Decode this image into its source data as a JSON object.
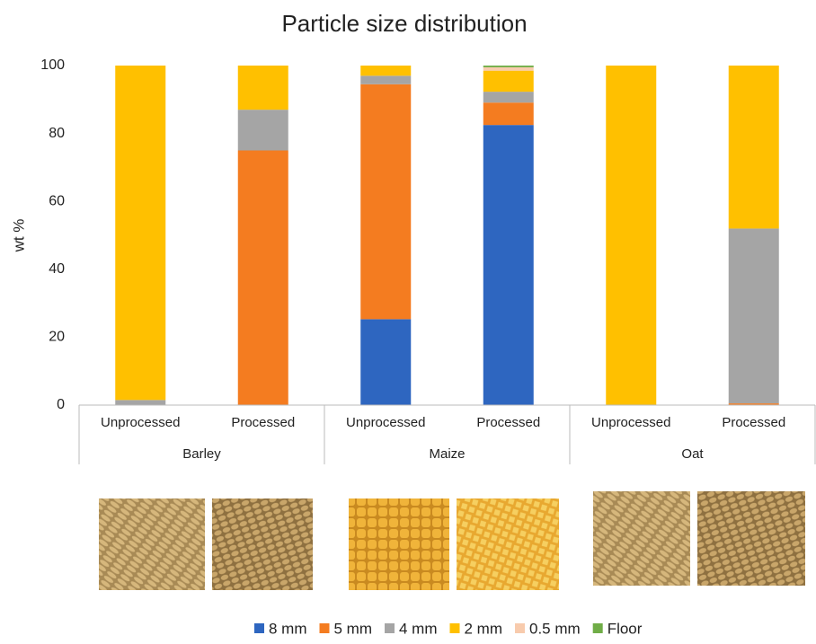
{
  "chart_data": {
    "type": "stacked-bar",
    "title": "Particle size distribution",
    "y_label": "wt %",
    "categories": [
      "Unprocessed",
      "Processed",
      "Unprocessed",
      "Processed",
      "Unprocessed",
      "Processed"
    ],
    "groups": [
      "Barley",
      "Maize",
      "Oat"
    ],
    "series": [
      {
        "name": "8 mm",
        "color": "#2e66c0",
        "values": [
          0,
          0,
          25.3,
          82.5,
          0,
          0
        ]
      },
      {
        "name": "5 mm",
        "color": "#f47c20",
        "values": [
          0,
          75,
          69.2,
          6.6,
          0,
          0.5
        ]
      },
      {
        "name": "4 mm",
        "color": "#a5a5a5",
        "values": [
          1.5,
          12,
          2.5,
          3.2,
          0,
          51.5
        ]
      },
      {
        "name": "2 mm",
        "color": "#ffc000",
        "values": [
          98.5,
          13,
          3,
          6.2,
          100,
          48
        ]
      },
      {
        "name": "0.5 mm",
        "color": "#f8cbad",
        "values": [
          0,
          0,
          0,
          1,
          0,
          0
        ]
      },
      {
        "name": "Floor",
        "color": "#70ad47",
        "values": [
          0,
          0,
          0,
          0.5,
          0,
          0
        ]
      }
    ],
    "ylim": [
      0,
      100
    ],
    "yticks": [
      0,
      20,
      40,
      60,
      80,
      100
    ],
    "grid": false
  }
}
